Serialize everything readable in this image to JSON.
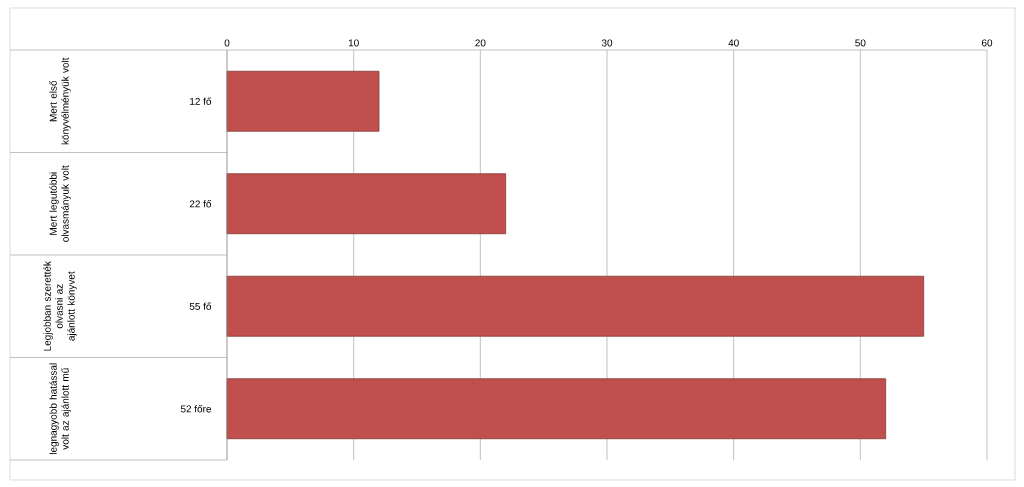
{
  "chart_data": {
    "type": "bar",
    "orientation": "horizontal",
    "categories": [
      "Mert első könyvélményük volt",
      "Mert legutóbbi olvasmányuk volt",
      "Legjobban szerették olvasni az ajánlott könyvet",
      "legnagyobb hatással volt az ajánlott mű"
    ],
    "values": [
      12,
      22,
      55,
      52
    ],
    "value_labels": [
      "12 fő",
      "22 fő",
      "55 fő",
      "52 főre"
    ],
    "color": "#c0504d",
    "x2lim": [
      0,
      60
    ],
    "x2ticks": [
      0,
      10,
      20,
      30,
      40,
      50,
      60
    ],
    "grid": "x"
  }
}
